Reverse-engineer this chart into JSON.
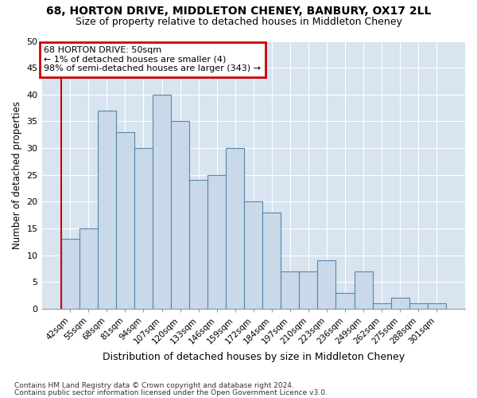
{
  "title1": "68, HORTON DRIVE, MIDDLETON CHENEY, BANBURY, OX17 2LL",
  "title2": "Size of property relative to detached houses in Middleton Cheney",
  "xlabel": "Distribution of detached houses by size in Middleton Cheney",
  "ylabel": "Number of detached properties",
  "footnote1": "Contains HM Land Registry data © Crown copyright and database right 2024.",
  "footnote2": "Contains public sector information licensed under the Open Government Licence v3.0.",
  "annotation_line1": "68 HORTON DRIVE: 50sqm",
  "annotation_line2": "← 1% of detached houses are smaller (4)",
  "annotation_line3": "98% of semi-detached houses are larger (343) →",
  "bar_labels": [
    "42sqm",
    "55sqm",
    "68sqm",
    "81sqm",
    "94sqm",
    "107sqm",
    "120sqm",
    "133sqm",
    "146sqm",
    "159sqm",
    "172sqm",
    "184sqm",
    "197sqm",
    "210sqm",
    "223sqm",
    "236sqm",
    "249sqm",
    "262sqm",
    "275sqm",
    "288sqm",
    "301sqm"
  ],
  "bar_values": [
    13,
    15,
    37,
    33,
    30,
    40,
    35,
    24,
    25,
    30,
    20,
    18,
    7,
    7,
    9,
    3,
    7,
    1,
    2,
    1,
    1
  ],
  "bar_color": "#c9d9ea",
  "bar_edge_color": "#5588aa",
  "vline_x_index": 0,
  "vline_color": "#cc0000",
  "annotation_box_color": "#cc0000",
  "fig_bg_color": "#ffffff",
  "plot_bg_color": "#d8e4f0",
  "grid_color": "#ffffff",
  "ylim": [
    0,
    50
  ],
  "yticks": [
    0,
    5,
    10,
    15,
    20,
    25,
    30,
    35,
    40,
    45,
    50
  ]
}
